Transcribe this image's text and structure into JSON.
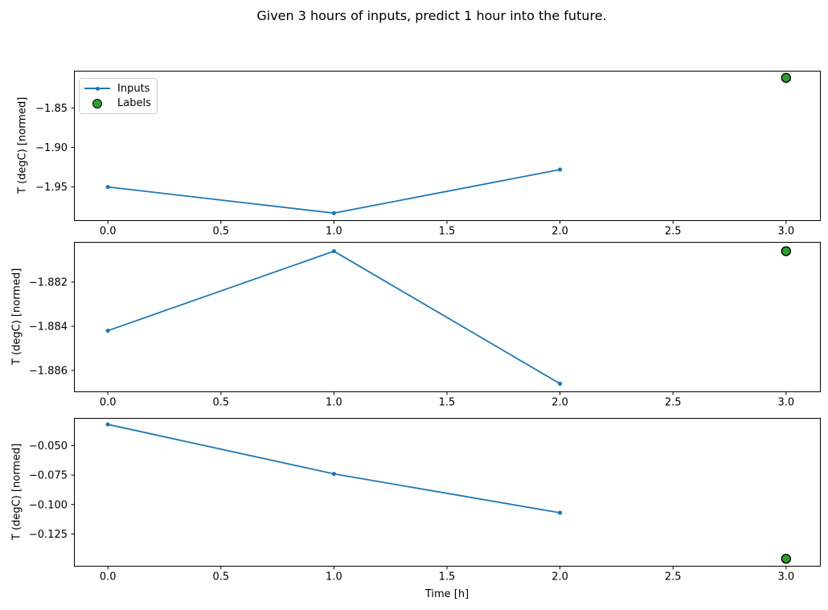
{
  "title": "Given 3 hours of inputs, predict 1 hour into the future.",
  "chart_data": [
    {
      "type": "line",
      "ylabel": "T (degC) [normed]",
      "xlabel": "",
      "xlim": [
        -0.15,
        3.15
      ],
      "ylim": [
        -1.992,
        -1.803
      ],
      "grid": false,
      "xticks": {
        "values": [
          0,
          0.5,
          1,
          1.5,
          2,
          2.5,
          3
        ],
        "labels": [
          "0.0",
          "0.5",
          "1.0",
          "1.5",
          "2.0",
          "2.5",
          "3.0"
        ]
      },
      "yticks": {
        "values": [
          -1.85,
          -1.9,
          -1.95
        ],
        "labels": [
          "−1.85",
          "−1.90",
          "−1.95"
        ]
      },
      "series": [
        {
          "name": "Inputs",
          "color": "#1f77b4",
          "marker": "dot",
          "x": [
            0,
            1,
            2
          ],
          "values": [
            -1.95,
            -1.983,
            -1.928
          ]
        }
      ],
      "labels_point": {
        "name": "Labels",
        "color": "#2ca02c",
        "edge_color": "#000000",
        "x": 3,
        "y": -1.812
      },
      "legend": {
        "visible": true,
        "position": "upper left",
        "entries": [
          {
            "label": "Inputs"
          },
          {
            "label": "Labels"
          }
        ]
      }
    },
    {
      "type": "line",
      "ylabel": "T (degC) [normed]",
      "xlabel": "",
      "xlim": [
        -0.15,
        3.15
      ],
      "ylim": [
        -1.88695,
        -1.88018
      ],
      "grid": false,
      "xticks": {
        "values": [
          0,
          0.5,
          1,
          1.5,
          2,
          2.5,
          3
        ],
        "labels": [
          "0.0",
          "0.5",
          "1.0",
          "1.5",
          "2.0",
          "2.5",
          "3.0"
        ]
      },
      "yticks": {
        "values": [
          -1.882,
          -1.884,
          -1.886
        ],
        "labels": [
          "−1.882",
          "−1.884",
          "−1.886"
        ]
      },
      "series": [
        {
          "name": "Inputs",
          "color": "#1f77b4",
          "marker": "dot",
          "x": [
            0,
            1,
            2
          ],
          "values": [
            -1.8842,
            -1.8806,
            -1.8866
          ]
        }
      ],
      "labels_point": {
        "name": "Labels",
        "color": "#2ca02c",
        "edge_color": "#000000",
        "x": 3,
        "y": -1.8806
      },
      "legend": {
        "visible": false
      }
    },
    {
      "type": "line",
      "ylabel": "T (degC) [normed]",
      "xlabel": "Time [h]",
      "xlim": [
        -0.15,
        3.15
      ],
      "ylim": [
        -0.152,
        -0.0265
      ],
      "grid": false,
      "xticks": {
        "values": [
          0,
          0.5,
          1,
          1.5,
          2,
          2.5,
          3
        ],
        "labels": [
          "0.0",
          "0.5",
          "1.0",
          "1.5",
          "2.0",
          "2.5",
          "3.0"
        ]
      },
      "yticks": {
        "values": [
          -0.05,
          -0.075,
          -0.1,
          -0.125
        ],
        "labels": [
          "−0.050",
          "−0.075",
          "−0.100",
          "−0.125"
        ]
      },
      "series": [
        {
          "name": "Inputs",
          "color": "#1f77b4",
          "marker": "dot",
          "x": [
            0,
            1,
            2
          ],
          "values": [
            -0.032,
            -0.074,
            -0.107
          ]
        }
      ],
      "labels_point": {
        "name": "Labels",
        "color": "#2ca02c",
        "edge_color": "#000000",
        "x": 3,
        "y": -0.146
      },
      "legend": {
        "visible": false
      }
    }
  ],
  "colors": {
    "inputs": "#1f77b4",
    "labels": "#2ca02c",
    "axes": "#000000"
  }
}
